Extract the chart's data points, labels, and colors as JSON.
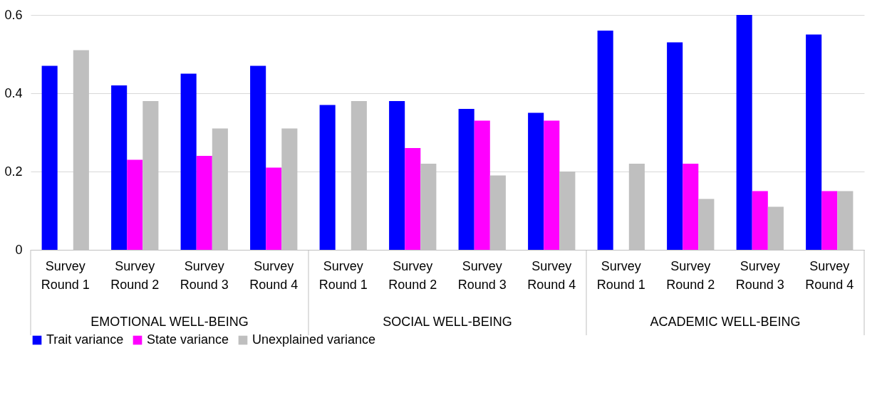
{
  "chart_data": {
    "type": "bar",
    "categories": [
      "Survey Round 1",
      "Survey Round 2",
      "Survey Round 3",
      "Survey Round 4",
      "Survey Round 1",
      "Survey Round 2",
      "Survey Round 3",
      "Survey Round 4",
      "Survey Round 1",
      "Survey Round 2",
      "Survey Round 3",
      "Survey Round 4"
    ],
    "series": [
      {
        "name": "Trait variance",
        "color": "#0000ff",
        "values": [
          0.47,
          0.42,
          0.45,
          0.47,
          0.37,
          0.38,
          0.36,
          0.35,
          0.56,
          0.53,
          0.6,
          0.55
        ]
      },
      {
        "name": "State variance",
        "color": "#ff00ff",
        "values": [
          null,
          0.23,
          0.24,
          0.21,
          null,
          0.26,
          0.33,
          0.33,
          null,
          0.22,
          0.15,
          0.15
        ]
      },
      {
        "name": "Unexplained variance",
        "color": "#bfbfbf",
        "values": [
          0.51,
          0.38,
          0.31,
          0.31,
          0.38,
          0.22,
          0.19,
          0.2,
          0.22,
          0.13,
          0.11,
          0.15
        ]
      }
    ],
    "annotations": [
      "EMOTIONAL WELL-BEING",
      "SOCIAL WELL-BEING",
      "ACADEMIC WELL-BEING"
    ],
    "ylim": [
      0,
      0.6
    ],
    "yticks": [
      0,
      0.2,
      0.4,
      0.6
    ],
    "grid": "y",
    "legend": "bottom"
  }
}
